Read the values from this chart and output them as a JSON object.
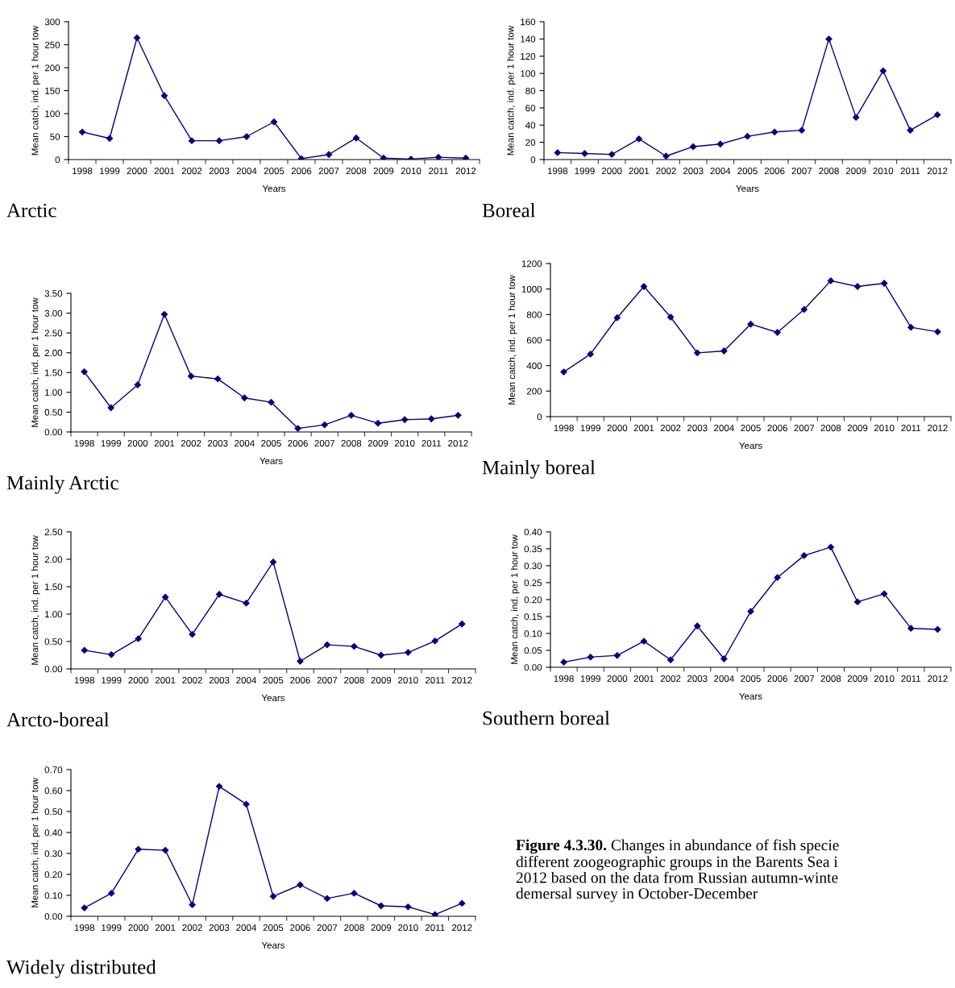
{
  "chart_data": [
    {
      "type": "line",
      "title": "Arctic",
      "xlabel": "Years",
      "ylabel": "Mean catch, ind. per 1 hour tow",
      "color": "#000080",
      "marker": "diamond",
      "categories": [
        "1998",
        "1999",
        "2000",
        "2001",
        "2002",
        "2003",
        "2004",
        "2005",
        "2006",
        "2007",
        "2008",
        "2009",
        "2010",
        "2011",
        "2012"
      ],
      "values": [
        60,
        46,
        265,
        139,
        41,
        41,
        50,
        82,
        2,
        11,
        47,
        3,
        1,
        5,
        3
      ],
      "ylim": [
        0,
        300
      ],
      "yticks": [
        0,
        50,
        100,
        150,
        200,
        250,
        300
      ],
      "grid": false
    },
    {
      "type": "line",
      "title": "Boreal",
      "xlabel": "Years",
      "ylabel": "Mean catch, ind. per 1 hour tow",
      "color": "#000080",
      "marker": "diamond",
      "categories": [
        "1998",
        "1999",
        "2000",
        "2001",
        "2002",
        "2003",
        "2004",
        "2005",
        "2006",
        "2007",
        "2008",
        "2009",
        "2010",
        "2011",
        "2012"
      ],
      "values": [
        8,
        7,
        6,
        24,
        4,
        15,
        18,
        27,
        32,
        34,
        140,
        49,
        103,
        34,
        52
      ],
      "ylim": [
        0,
        160
      ],
      "yticks": [
        0,
        20,
        40,
        60,
        80,
        100,
        120,
        140,
        160
      ],
      "grid": false
    },
    {
      "type": "line",
      "title": "Mainly Arctic",
      "xlabel": "Years",
      "ylabel": "Mean catch, ind. per 1 hour tow",
      "color": "#000080",
      "marker": "diamond",
      "categories": [
        "1998",
        "1999",
        "2000",
        "2001",
        "2002",
        "2003",
        "2004",
        "2005",
        "2006",
        "2007",
        "2008",
        "2009",
        "2010",
        "2011",
        "2012"
      ],
      "values": [
        1.52,
        0.61,
        1.19,
        2.97,
        1.41,
        1.34,
        0.86,
        0.75,
        0.09,
        0.18,
        0.42,
        0.22,
        0.31,
        0.33,
        0.42
      ],
      "ylim": [
        0,
        3.5
      ],
      "yticks": [
        {
          "value": 0,
          "label": "0.00"
        },
        {
          "value": 0.5,
          "label": "0.50"
        },
        {
          "value": 1,
          "label": "1.00"
        },
        {
          "value": 1.5,
          "label": "1.50"
        },
        {
          "value": 2,
          "label": "2.00"
        },
        {
          "value": 2.5,
          "label": "2.50"
        },
        {
          "value": 3,
          "label": "3.00"
        },
        {
          "value": 3.5,
          "label": "3.50"
        }
      ],
      "grid": false
    },
    {
      "type": "line",
      "title": "Mainly boreal",
      "xlabel": "Years",
      "ylabel": "Mean catch, ind. per 1 hour tow",
      "color": "#000080",
      "marker": "diamond",
      "categories": [
        "1998",
        "1999",
        "2000",
        "2001",
        "2002",
        "2003",
        "2004",
        "2005",
        "2006",
        "2007",
        "2008",
        "2009",
        "2010",
        "2011",
        "2012"
      ],
      "values": [
        350,
        490,
        775,
        1020,
        780,
        500,
        515,
        725,
        660,
        840,
        1065,
        1020,
        1045,
        700,
        665
      ],
      "ylim": [
        0,
        1200
      ],
      "yticks": [
        0,
        200,
        400,
        600,
        800,
        1000,
        1200
      ],
      "grid": false
    },
    {
      "type": "line",
      "title": "Arcto-boreal",
      "xlabel": "Years",
      "ylabel": "Mean catch, ind. per 1 hour tow",
      "color": "#000080",
      "marker": "diamond",
      "categories": [
        "1998",
        "1999",
        "2000",
        "2001",
        "2002",
        "2003",
        "2004",
        "2005",
        "2006",
        "2007",
        "2008",
        "2009",
        "2010",
        "2011",
        "2012"
      ],
      "values": [
        0.34,
        0.26,
        0.55,
        1.31,
        0.63,
        1.36,
        1.2,
        1.95,
        0.14,
        0.44,
        0.41,
        0.25,
        0.3,
        0.51,
        0.82
      ],
      "ylim": [
        0,
        2.5
      ],
      "yticks": [
        {
          "value": 0,
          "label": "0.00"
        },
        {
          "value": 0.5,
          "label": "0.50"
        },
        {
          "value": 1,
          "label": "1.00"
        },
        {
          "value": 1.5,
          "label": "1.50"
        },
        {
          "value": 2,
          "label": "2.00"
        },
        {
          "value": 2.5,
          "label": "2.50"
        }
      ],
      "grid": false
    },
    {
      "type": "line",
      "title": "Southern boreal",
      "xlabel": "Years",
      "ylabel": "Mean catch, ind. per 1 hour tow",
      "color": "#000080",
      "marker": "diamond",
      "categories": [
        "1998",
        "1999",
        "2000",
        "2001",
        "2002",
        "2003",
        "2004",
        "2005",
        "2006",
        "2007",
        "2008",
        "2009",
        "2010",
        "2011",
        "2012"
      ],
      "values": [
        0.015,
        0.03,
        0.035,
        0.077,
        0.022,
        0.122,
        0.025,
        0.165,
        0.265,
        0.33,
        0.355,
        0.193,
        0.217,
        0.115,
        0.112
      ],
      "ylim": [
        0,
        0.4
      ],
      "yticks": [
        {
          "value": 0,
          "label": "0.00"
        },
        {
          "value": 0.05,
          "label": "0.05"
        },
        {
          "value": 0.1,
          "label": "0.10"
        },
        {
          "value": 0.15,
          "label": "0.15"
        },
        {
          "value": 0.2,
          "label": "0.20"
        },
        {
          "value": 0.25,
          "label": "0.25"
        },
        {
          "value": 0.3,
          "label": "0.30"
        },
        {
          "value": 0.35,
          "label": "0.35"
        },
        {
          "value": 0.4,
          "label": "0.40"
        }
      ],
      "grid": false
    },
    {
      "type": "line",
      "title": "Widely distributed",
      "xlabel": "Years",
      "ylabel": "Mean catch, ind. per 1 hour tow",
      "color": "#000080",
      "marker": "diamond",
      "categories": [
        "1998",
        "1999",
        "2000",
        "2001",
        "2002",
        "2003",
        "2004",
        "2005",
        "2006",
        "2007",
        "2008",
        "2009",
        "2010",
        "2011",
        "2012"
      ],
      "values": [
        0.04,
        0.11,
        0.32,
        0.315,
        0.055,
        0.62,
        0.535,
        0.095,
        0.15,
        0.085,
        0.11,
        0.05,
        0.045,
        0.008,
        0.062
      ],
      "ylim": [
        0,
        0.7
      ],
      "yticks": [
        {
          "value": 0,
          "label": "0.00"
        },
        {
          "value": 0.1,
          "label": "0.10"
        },
        {
          "value": 0.2,
          "label": "0.20"
        },
        {
          "value": 0.3,
          "label": "0.30"
        },
        {
          "value": 0.4,
          "label": "0.40"
        },
        {
          "value": 0.5,
          "label": "0.50"
        },
        {
          "value": 0.6,
          "label": "0.60"
        },
        {
          "value": 0.7,
          "label": "0.70"
        }
      ],
      "grid": false,
      "annotations": [
        "Figure 4.3.30.",
        "Changes in abundance of fish specie",
        "different zoogeographic groups in the Barents Sea i\n2012 based on the data from Russian autumn-winte\ndemersal survey in October-December"
      ]
    }
  ]
}
